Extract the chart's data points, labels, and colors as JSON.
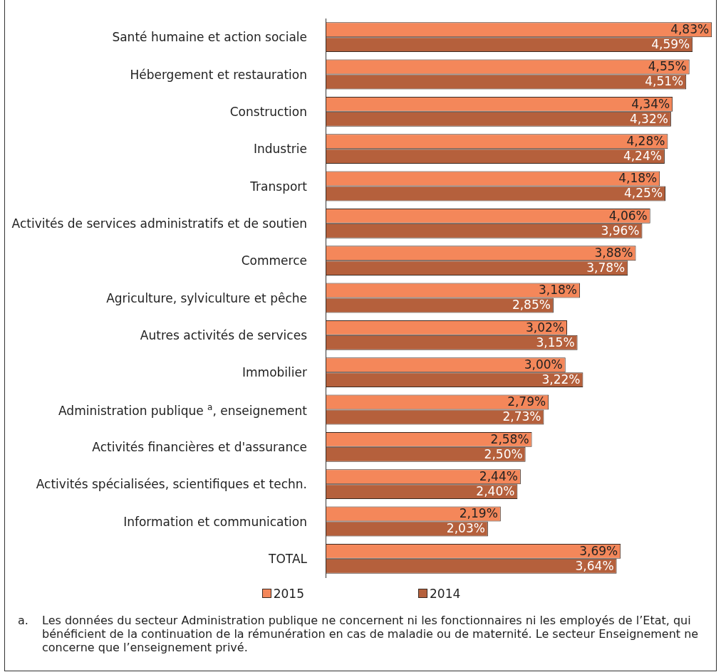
{
  "chart_data": {
    "type": "bar",
    "orientation": "horizontal",
    "categories": [
      "Santé humaine et action sociale",
      "Hébergement et restauration",
      "Construction",
      "Industrie",
      "Transport",
      "Activités de services administratifs et de soutien",
      "Commerce",
      "Agriculture, sylviculture et pêche",
      "Autres activités de services",
      "Immobilier",
      "Administration publique $^{a}$, enseignement",
      "Activités financières et d'assurance",
      "Activités spécialisées, scientifiques et techn.",
      "Information et communication",
      "TOTAL"
    ],
    "series": [
      {
        "name": "2015",
        "color": "#f4875a",
        "value_labels": [
          "4,83%",
          "4,55%",
          "4,34%",
          "4,28%",
          "4,18%",
          "4,06%",
          "3,88%",
          "3,18%",
          "3,02%",
          "3,00%",
          "2,79%",
          "2,58%",
          "2,44%",
          "2,19%",
          "3,69%"
        ],
        "values": [
          4.83,
          4.55,
          4.34,
          4.28,
          4.18,
          4.06,
          3.88,
          3.18,
          3.02,
          3.0,
          2.79,
          2.58,
          2.44,
          2.19,
          3.69
        ]
      },
      {
        "name": "2014",
        "color": "#b5603c",
        "value_labels": [
          "4,59%",
          "4,51%",
          "4,32%",
          "4,24%",
          "4,25%",
          "3,96%",
          "3,78%",
          "2,85%",
          "3,15%",
          "3,22%",
          "2,73%",
          "2,50%",
          "2,40%",
          "2,03%",
          "3,64%"
        ],
        "values": [
          4.59,
          4.51,
          4.32,
          4.24,
          4.25,
          3.96,
          3.78,
          2.85,
          3.15,
          3.22,
          2.73,
          2.5,
          2.4,
          2.03,
          3.64
        ]
      }
    ],
    "xlim": [
      0,
      4.9
    ],
    "legend": "bottom",
    "annotations": [
      "a. Les données du secteur Administration publique ne concernent ni les fonctionnaires ni les employés de l’Etat, qui bénéficient de la continuation de la rémunération en cas de maladie ou de maternité. Le secteur Enseignement ne concerne que l’enseignement privé."
    ]
  }
}
